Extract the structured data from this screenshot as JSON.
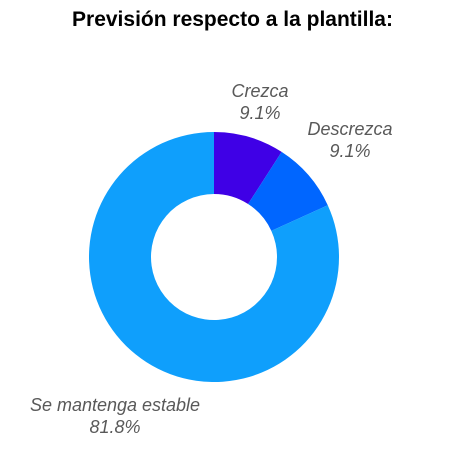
{
  "chart_data": {
    "type": "pie",
    "title": "Previsión respecto a la plantilla:",
    "slices": [
      {
        "label": "Crezca",
        "percent_label": "9.1%",
        "value": 9.1,
        "color": "#3f00e6"
      },
      {
        "label": "Descrezca",
        "percent_label": "9.1%",
        "value": 9.1,
        "color": "#0066ff"
      },
      {
        "label": "Se mantenga estable",
        "percent_label": "81.8%",
        "value": 81.8,
        "color": "#0f9ffc"
      }
    ],
    "legend": "none",
    "donut": true
  }
}
